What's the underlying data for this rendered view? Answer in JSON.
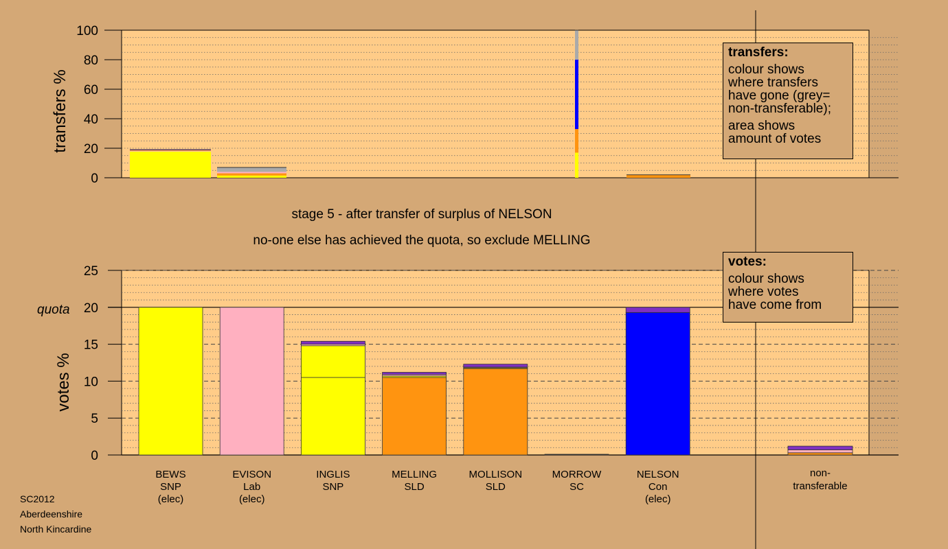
{
  "colors": {
    "background": "#d4a876",
    "plot_bg": "#ffcc88",
    "SNP": "#ffff00",
    "Lab": "#ffb0c0",
    "SLD": "#ff9410",
    "Con": "#0000ff",
    "purple": "#8030c0",
    "grey": "#aaaaaa",
    "dark": "#333333"
  },
  "transfers_legend": {
    "title": "transfers:",
    "lines_a": [
      "colour shows",
      "where transfers",
      "have gone (grey=",
      "non-transferable);"
    ],
    "lines_b": [
      "area shows",
      "amount of votes"
    ]
  },
  "votes_legend": {
    "title": "votes:",
    "lines": [
      "colour shows",
      "where votes",
      "have come from"
    ]
  },
  "stage_text": {
    "line1": "stage 5 - after transfer of surplus of NELSON",
    "line2": "no-one else has achieved the quota, so exclude MELLING"
  },
  "quota_label": "quota",
  "footer": {
    "line1": "SC2012",
    "line2": "Aberdeenshire",
    "line3": "North Kincardine"
  },
  "chart_data": [
    {
      "type": "bar",
      "id": "transfers",
      "ylabel": "transfers %",
      "ylim": [
        0,
        100
      ],
      "yticks": [
        0,
        20,
        40,
        60,
        80,
        100
      ],
      "grid": true,
      "bars": [
        {
          "candidate": "BEWS",
          "total": 19,
          "segments": [
            {
              "color": "SNP",
              "value": 17.8
            },
            {
              "color": "Lab",
              "value": 0.5
            },
            {
              "color": "SLD",
              "value": 0.3
            },
            {
              "color": "purple",
              "value": 0.6
            }
          ]
        },
        {
          "candidate": "EVISON",
          "total": 7,
          "segments": [
            {
              "color": "SNP",
              "value": 1.5
            },
            {
              "color": "SLD",
              "value": 1.5
            },
            {
              "color": "Lab",
              "value": 1.0
            },
            {
              "color": "grey",
              "value": 3.0
            }
          ]
        },
        {
          "candidate": "NELSON",
          "total": 100,
          "segments": [
            {
              "color": "SNP",
              "value": 17
            },
            {
              "color": "SLD",
              "value": 16
            },
            {
              "color": "Con",
              "value": 47
            },
            {
              "color": "grey",
              "value": 20
            }
          ]
        },
        {
          "candidate": "non-transferable",
          "total": 2,
          "segments": [
            {
              "color": "SLD",
              "value": 2
            }
          ]
        }
      ]
    },
    {
      "type": "bar",
      "id": "votes",
      "ylabel": "votes %",
      "ylim": [
        0,
        25
      ],
      "yticks": [
        0,
        5,
        10,
        15,
        20,
        25
      ],
      "quota": 20,
      "grid": true,
      "candidates": [
        {
          "name": "BEWS",
          "party": "SNP",
          "note": "(elec)",
          "total": 20,
          "segments": [
            {
              "color": "SNP",
              "value": 20
            }
          ]
        },
        {
          "name": "EVISON",
          "party": "Lab",
          "note": "(elec)",
          "total": 20,
          "segments": [
            {
              "color": "Lab",
              "value": 20
            }
          ]
        },
        {
          "name": "INGLIS",
          "party": "SNP",
          "note": "",
          "total": 15.4,
          "segments": [
            {
              "color": "SNP",
              "value": 10.5
            },
            {
              "color": "SNP",
              "value": 4.3
            },
            {
              "color": "Lab",
              "value": 0.2
            },
            {
              "color": "purple",
              "value": 0.4
            }
          ]
        },
        {
          "name": "MELLING",
          "party": "SLD",
          "note": "",
          "total": 11.2,
          "segments": [
            {
              "color": "SLD",
              "value": 10.5
            },
            {
              "color": "SNP",
              "value": 0.2
            },
            {
              "color": "Lab",
              "value": 0.2
            },
            {
              "color": "purple",
              "value": 0.3
            }
          ]
        },
        {
          "name": "MOLLISON",
          "party": "SLD",
          "note": "",
          "total": 12.3,
          "segments": [
            {
              "color": "SLD",
              "value": 11.7
            },
            {
              "color": "SNP",
              "value": 0.1
            },
            {
              "color": "Lab",
              "value": 0.1
            },
            {
              "color": "purple",
              "value": 0.4
            }
          ]
        },
        {
          "name": "MORROW",
          "party": "SC",
          "note": "",
          "total": 0.1,
          "segments": [
            {
              "color": "dark",
              "value": 0.1
            }
          ]
        },
        {
          "name": "NELSON",
          "party": "Con",
          "note": "(elec)",
          "total": 20,
          "segments": [
            {
              "color": "Con",
              "value": 19.3
            },
            {
              "color": "purple",
              "value": 0.7
            }
          ]
        }
      ],
      "non_transferable": {
        "label_line1": "non-",
        "label_line2": "transferable",
        "total": 1.2,
        "segments": [
          {
            "color": "SLD",
            "value": 0.3
          },
          {
            "color": "Lab",
            "value": 0.4
          },
          {
            "color": "purple",
            "value": 0.5
          }
        ]
      }
    }
  ]
}
